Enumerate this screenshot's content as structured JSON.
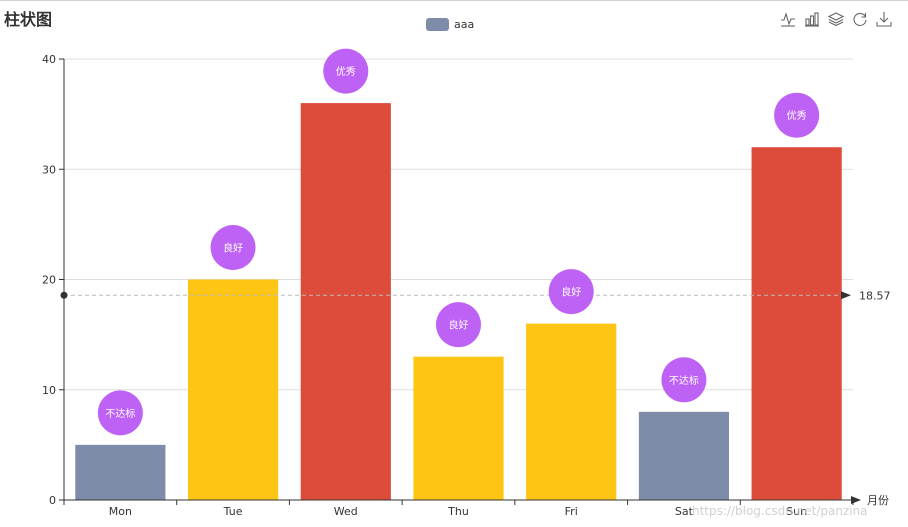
{
  "title": "柱状图",
  "legend": {
    "label": "aaa",
    "color": "#7f8ca9"
  },
  "toolbox": [
    {
      "name": "line-chart-icon"
    },
    {
      "name": "bar-chart-icon"
    },
    {
      "name": "stack-icon"
    },
    {
      "name": "refresh-icon"
    },
    {
      "name": "download-icon"
    }
  ],
  "watermark": "https://blog.csdn.net/panzina",
  "chart_data": {
    "type": "bar",
    "title": "柱状图",
    "categories": [
      "Mon",
      "Tue",
      "Wed",
      "Thu",
      "Fri",
      "Sat",
      "Sun"
    ],
    "series": [
      {
        "name": "aaa",
        "values": [
          5,
          20,
          36,
          13,
          16,
          8,
          32
        ]
      }
    ],
    "xlabel": "月份",
    "ylabel": "",
    "ylim": [
      0,
      40
    ],
    "yticks": [
      0,
      10,
      20,
      30,
      40
    ],
    "grid": true,
    "bar_colors": [
      "#7f8ca9",
      "#fec514",
      "#dd4c3b",
      "#fec514",
      "#fec514",
      "#7f8ca9",
      "#dd4c3b"
    ],
    "mark_points": [
      "不达标",
      "良好",
      "优秀",
      "良好",
      "良好",
      "不达标",
      "优秀"
    ],
    "mark_point_color": "#be62f5",
    "average_line": {
      "value": 18.57,
      "label": "18.57"
    },
    "legend_position": "top-center"
  }
}
